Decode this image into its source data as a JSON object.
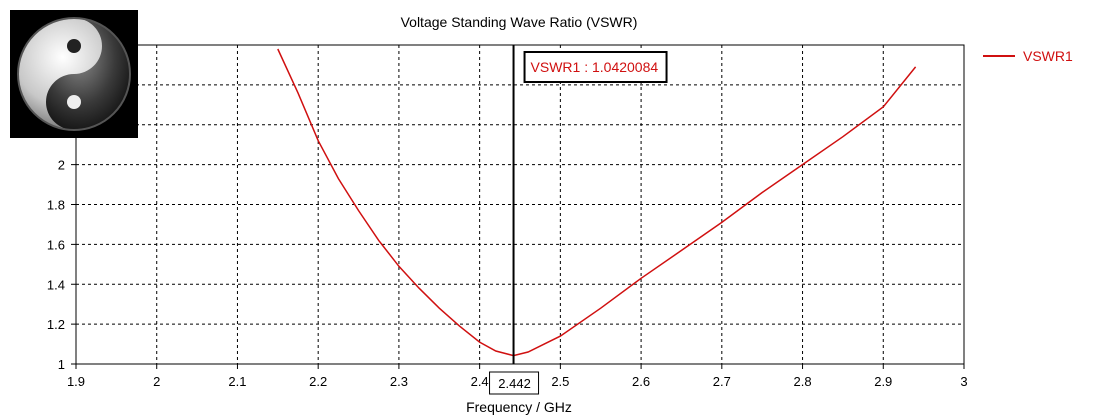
{
  "chart_data": {
    "type": "line",
    "title": "Voltage Standing Wave Ratio (VSWR)",
    "xlabel": "Frequency / GHz",
    "ylabel": "",
    "xlim": [
      1.9,
      3.0
    ],
    "ylim": [
      1.0,
      2.6
    ],
    "xticks": [
      "1.9",
      "2",
      "2.1",
      "2.2",
      "2.3",
      "2.4",
      "2.5",
      "2.6",
      "2.7",
      "2.8",
      "2.9",
      "3"
    ],
    "yticks": [
      "1",
      "1.2",
      "1.4",
      "1.6",
      "1.8",
      "2"
    ],
    "grid": true,
    "legend_position": "top-right",
    "series": [
      {
        "name": "VSWR1",
        "color": "#d01010",
        "x": [
          2.15,
          2.175,
          2.2,
          2.225,
          2.25,
          2.275,
          2.3,
          2.325,
          2.35,
          2.375,
          2.4,
          2.42,
          2.442,
          2.46,
          2.48,
          2.5,
          2.55,
          2.6,
          2.65,
          2.7,
          2.75,
          2.8,
          2.85,
          2.9,
          2.94
        ],
        "y": [
          2.58,
          2.36,
          2.12,
          1.93,
          1.77,
          1.62,
          1.49,
          1.38,
          1.28,
          1.19,
          1.11,
          1.065,
          1.042,
          1.06,
          1.1,
          1.14,
          1.28,
          1.43,
          1.57,
          1.71,
          1.86,
          2.0,
          2.14,
          2.29,
          2.49
        ]
      }
    ],
    "marker": {
      "x": 2.442,
      "x_label": "2.442",
      "label": "VSWR1 : 1.0420084"
    }
  },
  "logo": {
    "name": "yin-yang-logo"
  }
}
